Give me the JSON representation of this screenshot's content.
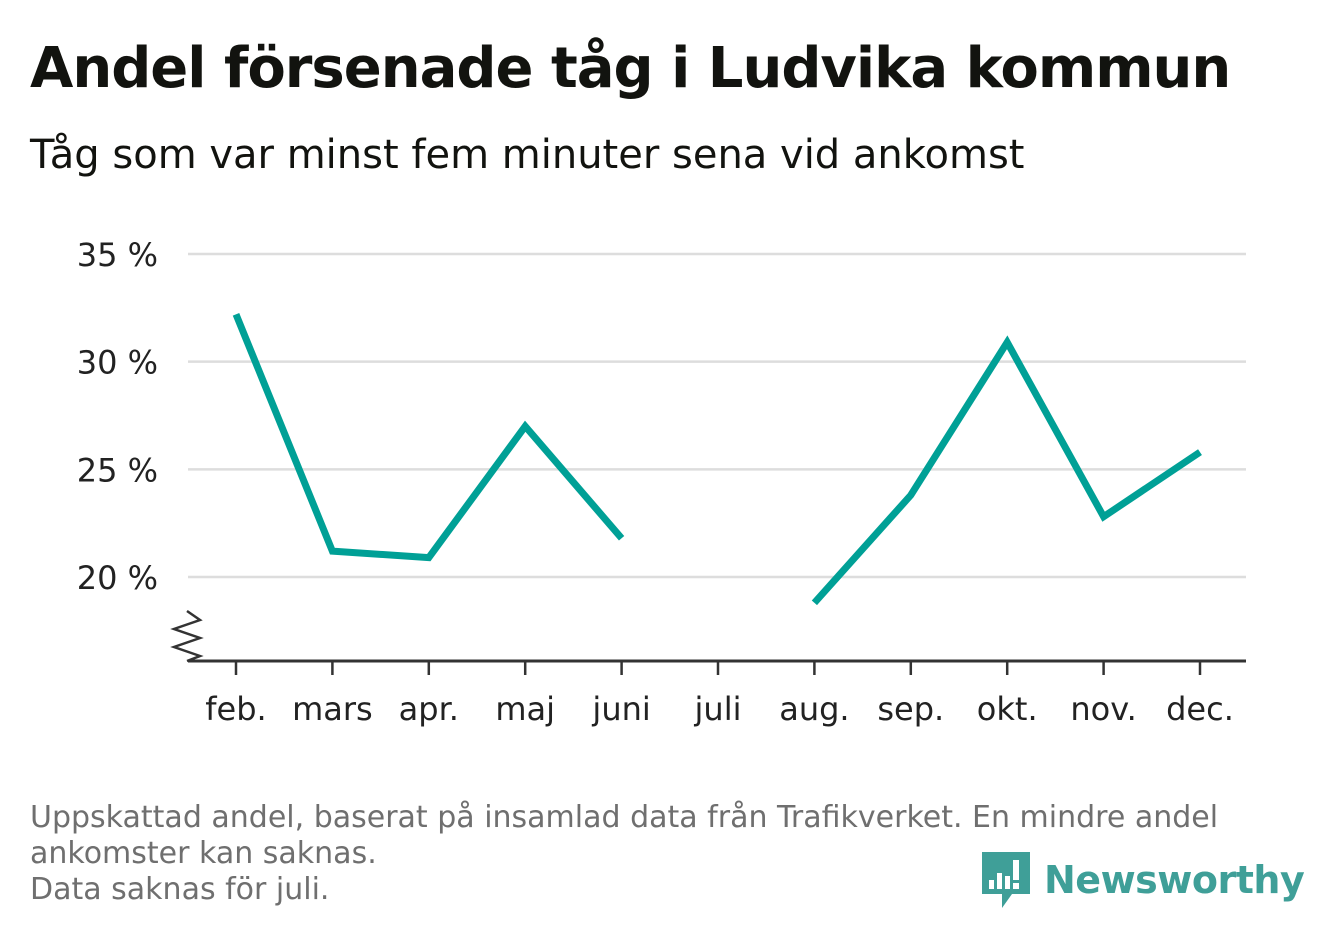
{
  "title": "Andel försenade tåg i Ludvika kommun",
  "subtitle": "Tåg som var minst fem minuter sena vid ankomst",
  "footnote": {
    "line1": "Uppskattad andel, baserat på insamlad data från Trafikverket. En mindre andel",
    "line2": "ankomster kan saknas.",
    "line3": "Data saknas för juli."
  },
  "brand": {
    "name": "Newsworthy",
    "icon": "newsworthy-logo-icon",
    "color": "#3f9f98"
  },
  "colors": {
    "line": "#00a096",
    "grid": "#dddddd",
    "axis": "#333333",
    "text": "#222222"
  },
  "chart_data": {
    "type": "line",
    "categories": [
      "feb.",
      "mars",
      "apr.",
      "maj",
      "juni",
      "juli",
      "aug.",
      "sep.",
      "okt.",
      "nov.",
      "dec."
    ],
    "series": [
      {
        "values": [
          32.2,
          21.2,
          20.9,
          27.0,
          21.8,
          null,
          18.8,
          23.8,
          30.9,
          22.8,
          25.8
        ]
      }
    ],
    "yticks": [
      20,
      35,
      30,
      25
    ],
    "ytick_labels": [
      "20 %",
      "35 %",
      "30 %",
      "25 %"
    ],
    "ylim": [
      16,
      35
    ],
    "axis_break": true,
    "grid": true,
    "legend": "none",
    "xlabel": "",
    "ylabel": ""
  }
}
